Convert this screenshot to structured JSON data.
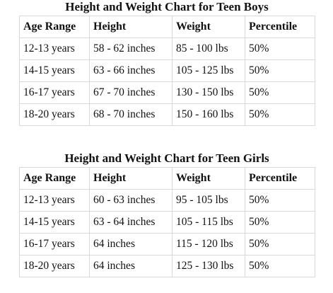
{
  "boys": {
    "title": "Height and Weight Chart for Teen Boys",
    "headers": [
      "Age Range",
      "Height",
      "Weight",
      "Percentile"
    ],
    "rows": [
      [
        "12-13 years",
        "58 - 62 inches",
        "85 - 100 lbs",
        "50%"
      ],
      [
        "14-15 years",
        "63 - 66 inches",
        "105 - 125 lbs",
        "50%"
      ],
      [
        "16-17 years",
        "67 - 70 inches",
        "130 - 150 lbs",
        "50%"
      ],
      [
        "18-20 years",
        "68 - 70 inches",
        "150 - 160 lbs",
        "50%"
      ]
    ]
  },
  "girls": {
    "title": "Height and Weight Chart for Teen Girls",
    "headers": [
      "Age Range",
      "Height",
      "Weight",
      "Percentile"
    ],
    "rows": [
      [
        "12-13 years",
        "60 - 63 inches",
        "95 - 105 lbs",
        "50%"
      ],
      [
        "14-15 years",
        "63 - 64 inches",
        "105 - 115 lbs",
        "50%"
      ],
      [
        "16-17 years",
        "64 inches",
        "115 - 120 lbs",
        "50%"
      ],
      [
        "18-20 years",
        "64 inches",
        "125 - 130 lbs",
        "50%"
      ]
    ]
  }
}
